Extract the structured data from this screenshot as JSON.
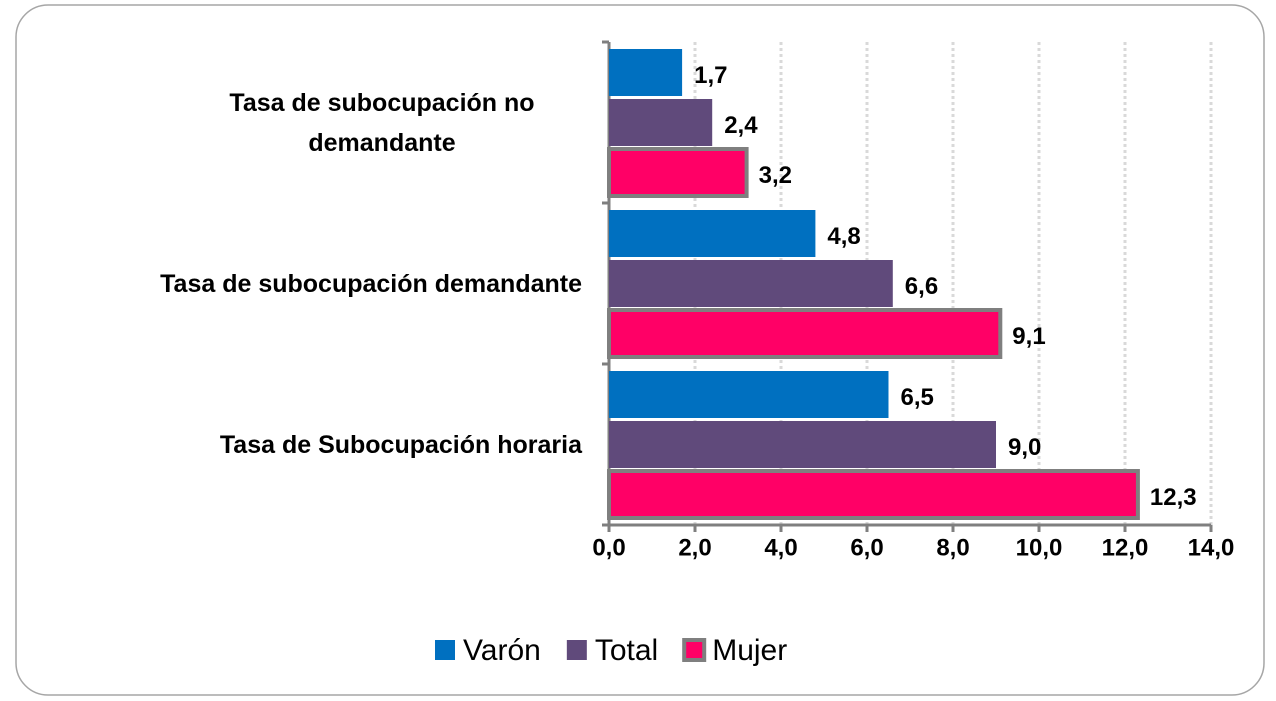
{
  "chart_data": {
    "type": "bar",
    "orientation": "horizontal",
    "categories": [
      "Tasa de subocupación no demandante",
      "Tasa de subocupación demandante",
      "Tasa de Subocupación horaria"
    ],
    "series": [
      {
        "name": "Varón",
        "color": "#0070c0",
        "values": [
          1.7,
          4.8,
          6.5
        ],
        "value_labels": [
          "1,7",
          "4,8",
          "6,5"
        ]
      },
      {
        "name": "Total",
        "color": "#604a7b",
        "values": [
          2.4,
          6.6,
          9.0
        ],
        "value_labels": [
          "2,4",
          "6,6",
          "9,0"
        ]
      },
      {
        "name": "Mujer",
        "color": "#ff0066",
        "border": "#7f7f7f",
        "values": [
          3.2,
          9.1,
          12.3
        ],
        "value_labels": [
          "3,2",
          "9,1",
          "12,3"
        ]
      }
    ],
    "xlim": [
      0,
      14
    ],
    "xticks": [
      {
        "value": 0,
        "label": "0,0"
      },
      {
        "value": 2,
        "label": "2,0"
      },
      {
        "value": 4,
        "label": "4,0"
      },
      {
        "value": 6,
        "label": "6,0"
      },
      {
        "value": 8,
        "label": "8,0"
      },
      {
        "value": 10,
        "label": "10,0"
      },
      {
        "value": 12,
        "label": "12,0"
      },
      {
        "value": 14,
        "label": "14,0"
      }
    ],
    "grid": true,
    "legend": "bottom"
  }
}
